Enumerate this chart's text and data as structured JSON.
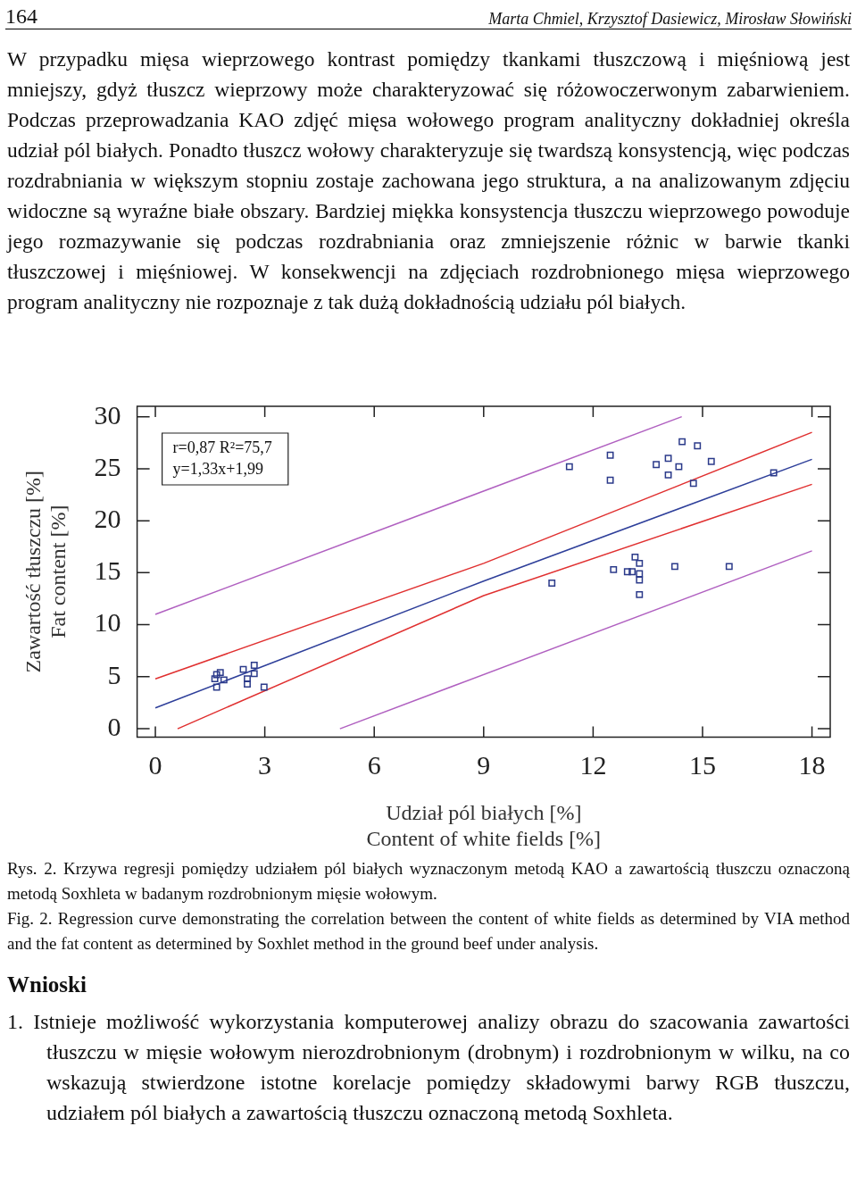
{
  "chart_data": {
    "type": "scatter",
    "xlabel": "Udział pól białych [%]\nContent of white fields [%]",
    "ylabel": "Zawartość tłuszczu [%]\nFat content [%]",
    "xlim": [
      -0.5,
      18.5
    ],
    "ylim": [
      -0.8,
      31
    ],
    "xticks": [
      0,
      3,
      6,
      9,
      12,
      15,
      18
    ],
    "yticks": [
      0,
      5,
      10,
      15,
      20,
      25,
      30
    ],
    "series": [
      {
        "marker": "square",
        "color": "#2b3a8a",
        "x": [
          1.63,
          1.68,
          1.78,
          1.68,
          1.88,
          2.41,
          2.52,
          2.52,
          2.71,
          2.71,
          2.98,
          11.35,
          12.47,
          12.47,
          13.73,
          14.06,
          14.06,
          14.35,
          14.44,
          14.75,
          14.86,
          15.24,
          16.95,
          10.87,
          12.56,
          12.94,
          13.07,
          13.15,
          13.27,
          13.27,
          13.27,
          13.27,
          14.24,
          15.73
        ],
        "values": [
          4.8,
          5.2,
          5.4,
          4.0,
          4.7,
          5.7,
          4.8,
          4.3,
          6.1,
          5.3,
          4.0,
          25.2,
          26.3,
          23.9,
          25.4,
          26.0,
          24.4,
          25.2,
          27.6,
          23.6,
          27.2,
          25.7,
          24.6,
          14.0,
          15.3,
          15.1,
          15.1,
          16.5,
          15.9,
          14.9,
          14.3,
          12.9,
          15.6,
          15.6
        ]
      },
      {
        "type": "line",
        "color": "#2e3f9a",
        "x": [
          0,
          9,
          18
        ],
        "values": [
          2.0,
          14.2,
          25.9
        ]
      },
      {
        "type": "line",
        "color": "#e03030",
        "x": [
          0,
          9,
          18
        ],
        "values": [
          4.8,
          15.9,
          28.5
        ]
      },
      {
        "type": "line",
        "color": "#e03030",
        "x": [
          0.61,
          9,
          18
        ],
        "values": [
          0,
          12.8,
          23.5
        ]
      },
      {
        "type": "line",
        "color": "#b060c0",
        "x": [
          0,
          14.43
        ],
        "values": [
          11.0,
          30.0
        ]
      },
      {
        "type": "line",
        "color": "#b060c0",
        "x": [
          5.06,
          18
        ],
        "values": [
          0,
          17.1
        ]
      }
    ],
    "annotations": [
      "164",
      "Marta Chmiel, Krzysztof Dasiewicz, Mirosław Słowiński",
      "W przypadku mięsa wieprzowego kontrast pomiędzy tkankami tłuszczową i mięśniową jest mniejszy, gdyż tłuszcz wieprzowy może charakteryzować się różowoczerwonym zabarwieniem. Podczas przeprowadzania KAO zdjęć mięsa wołowego program analityczny dokładniej określa udział pól białych. Ponadto tłuszcz wołowy charakteryzuje się twardszą konsystencją, więc podczas rozdrabniania w większym stopniu zostaje zachowana jego struktura, a na analizowanym zdjęciu widoczne są wyraźne białe obszary. Bardziej miękka konsystencja tłuszczu wieprzowego powoduje jego rozmazywanie się podczas rozdrabniania oraz zmniejszenie różnic w barwie tkanki tłuszczowej i mięśniowej. W konsekwencji na zdjęciach rozdrobnionego mięsa wieprzowego program analityczny nie rozpoznaje z tak dużą dokładnością udziału pól białych.",
      "r=0,87 R²=75,7",
      "y=1,33x+1,99",
      "Rys. 2. Krzywa regresji pomiędzy udziałem pól białych wyznaczonym metodą KAO a zawartością tłuszczu oznaczoną metodą Soxhleta w badanym rozdrobnionym mięsie wołowym.",
      "Fig. 2. Regression curve demonstrating the correlation between the content of white fields as determined by VIA method and the fat content as determined by Soxhlet method in the ground beef under analysis.",
      "Wnioski",
      "1. Istnieje możliwość wykorzystania komputerowej analizy obrazu do szacowania zawartości tłuszczu w mięsie wołowym nierozdrobnionym (drobnym) i rozdrobnionym w wilku, na co wskazują stwierdzone istotne korelacje pomiędzy składowymi barwy RGB tłuszczu, udziałem pól białych a zawartością tłuszczu oznaczoną metodą Soxhleta."
    ]
  }
}
